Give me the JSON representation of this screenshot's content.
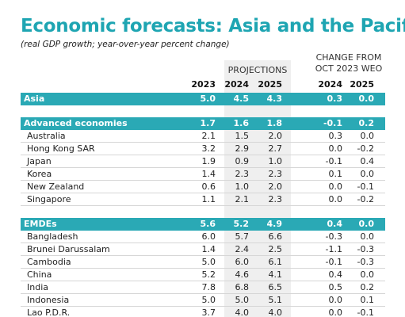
{
  "header": {
    "title": "Economic forecasts: Asia and the Pacific",
    "subtitle": "(real GDP growth; year-over-year percent change)"
  },
  "table": {
    "group_headers": {
      "projections": "PROJECTIONS",
      "change": [
        "CHANGE FROM",
        "OCT 2023 WEO"
      ]
    },
    "columns": [
      "2023",
      "2024",
      "2025",
      "2024",
      "2025"
    ],
    "sections": [
      {
        "name": "Asia",
        "values": [
          "5.0",
          "4.5",
          "4.3",
          "0.3",
          "0.0"
        ],
        "rows": []
      },
      {
        "name": "Advanced economies",
        "values": [
          "1.7",
          "1.6",
          "1.8",
          "-0.1",
          "0.2"
        ],
        "rows": [
          {
            "label": "Australia",
            "values": [
              "2.1",
              "1.5",
              "2.0",
              "0.3",
              "0.0"
            ]
          },
          {
            "label": "Hong Kong SAR",
            "values": [
              "3.2",
              "2.9",
              "2.7",
              "0.0",
              "-0.2"
            ]
          },
          {
            "label": "Japan",
            "values": [
              "1.9",
              "0.9",
              "1.0",
              "-0.1",
              "0.4"
            ]
          },
          {
            "label": "Korea",
            "values": [
              "1.4",
              "2.3",
              "2.3",
              "0.1",
              "0.0"
            ]
          },
          {
            "label": "New Zealand",
            "values": [
              "0.6",
              "1.0",
              "2.0",
              "0.0",
              "-0.1"
            ]
          },
          {
            "label": "Singapore",
            "values": [
              "1.1",
              "2.1",
              "2.3",
              "0.0",
              "-0.2"
            ]
          }
        ]
      },
      {
        "name": "EMDEs",
        "values": [
          "5.6",
          "5.2",
          "4.9",
          "0.4",
          "0.0"
        ],
        "rows": [
          {
            "label": "Bangladesh",
            "values": [
              "6.0",
              "5.7",
              "6.6",
              "-0.3",
              "0.0"
            ]
          },
          {
            "label": "Brunei Darussalam",
            "values": [
              "1.4",
              "2.4",
              "2.5",
              "-1.1",
              "-0.3"
            ]
          },
          {
            "label": "Cambodia",
            "values": [
              "5.0",
              "6.0",
              "6.1",
              "-0.1",
              "-0.3"
            ]
          },
          {
            "label": "China",
            "values": [
              "5.2",
              "4.6",
              "4.1",
              "0.4",
              "0.0"
            ]
          },
          {
            "label": "India",
            "values": [
              "7.8",
              "6.8",
              "6.5",
              "0.5",
              "0.2"
            ]
          },
          {
            "label": "Indonesia",
            "values": [
              "5.0",
              "5.0",
              "5.1",
              "0.0",
              "0.1"
            ]
          },
          {
            "label": "Lao P.D.R.",
            "values": [
              "3.7",
              "4.0",
              "4.0",
              "0.0",
              "-0.1"
            ]
          }
        ]
      }
    ]
  }
}
